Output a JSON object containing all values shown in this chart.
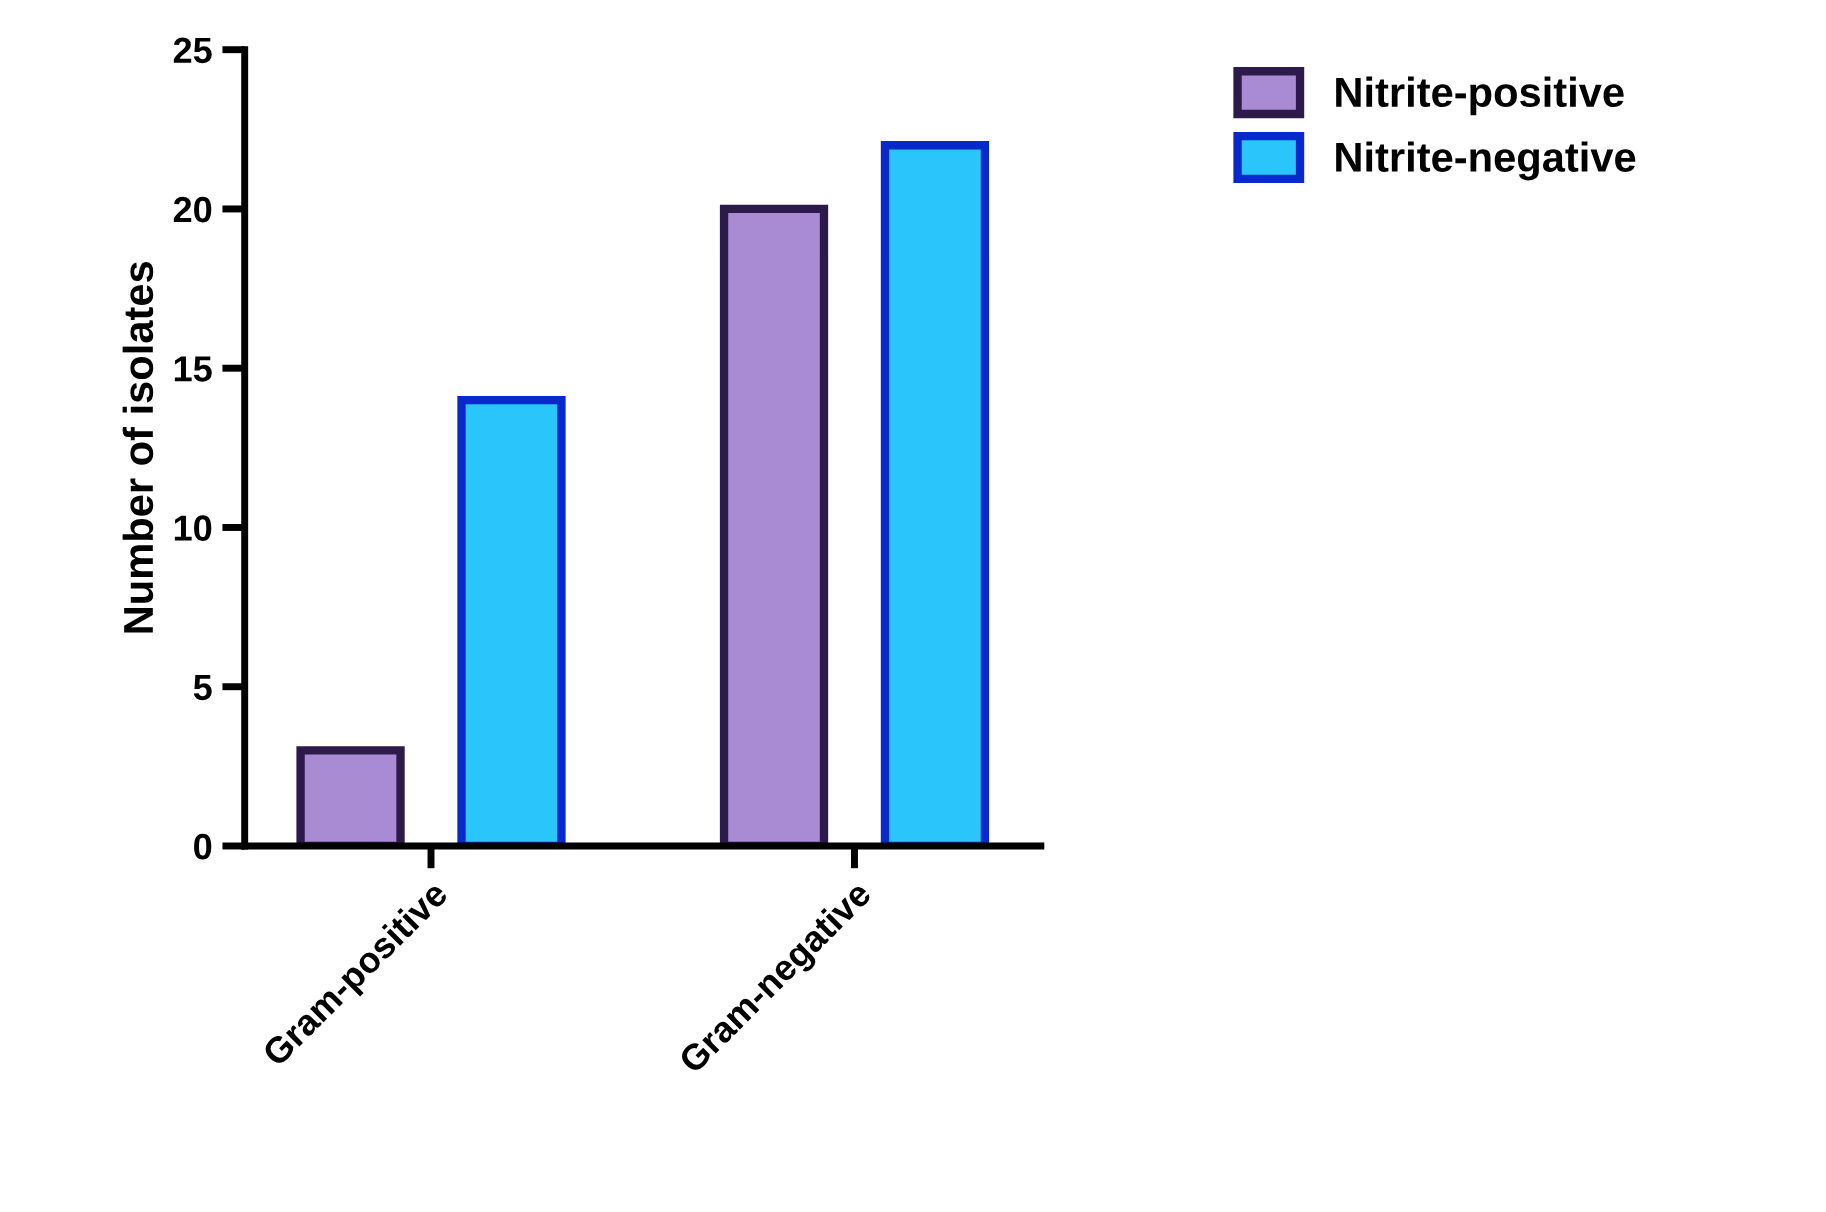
{
  "chart_data": {
    "type": "bar",
    "ylabel": "Number of isolates",
    "categories": [
      "Gram-positive",
      "Gram-negative"
    ],
    "series": [
      {
        "name": "Nitrite-positive",
        "color": "#a98bd3",
        "values": [
          3,
          20
        ]
      },
      {
        "name": "Nitrite-negative",
        "color": "#29c5fb",
        "values": [
          14,
          22
        ]
      }
    ],
    "ylim": [
      0,
      25
    ],
    "yticks": [
      0,
      5,
      10,
      15,
      20,
      25
    ],
    "grid": false,
    "legend": "top right"
  }
}
